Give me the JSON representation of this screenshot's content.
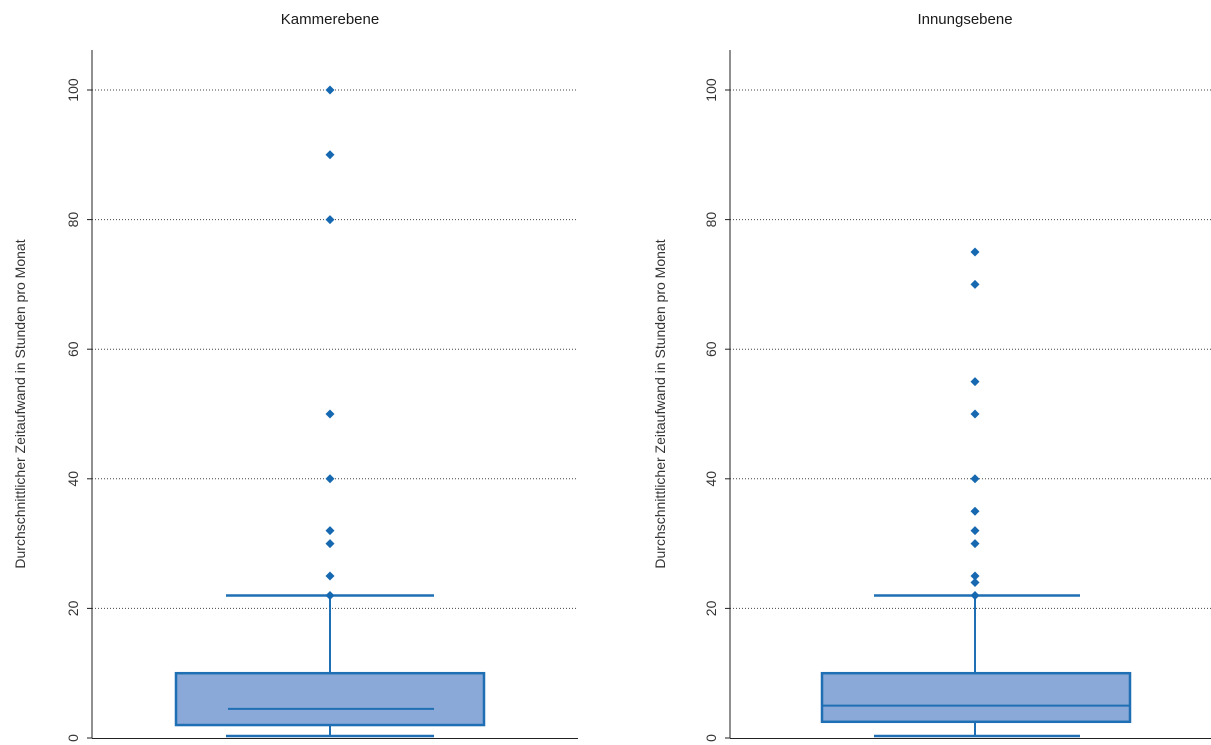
{
  "chart_data": [
    {
      "type": "box",
      "title": "Kammerebene",
      "ylabel": "Durchschnittlicher Zeitaufwand in Stunden pro Monat",
      "ylim": [
        0,
        106
      ],
      "yticks": [
        0,
        20,
        40,
        60,
        80,
        100
      ],
      "grid": true,
      "box": {
        "min": 0.3,
        "q1": 2,
        "median": 4.5,
        "q3": 10,
        "max": 22
      },
      "outliers": [
        22,
        25,
        30,
        32,
        40,
        50,
        80,
        90,
        100
      ],
      "color": "#8aa9d8",
      "edge_color": "#1f6fb4"
    },
    {
      "type": "box",
      "title": "Innungsebene",
      "ylabel": "Durchschnittlicher Zeitaufwand in Stunden pro Monat",
      "ylim": [
        0,
        106
      ],
      "yticks": [
        0,
        20,
        40,
        60,
        80,
        100
      ],
      "grid": true,
      "box": {
        "min": 0.3,
        "q1": 2.5,
        "median": 5,
        "q3": 10,
        "max": 22
      },
      "outliers": [
        22,
        24,
        25,
        30,
        32,
        35,
        40,
        50,
        55,
        70,
        75
      ],
      "color": "#8aa9d8",
      "edge_color": "#1f6fb4"
    }
  ]
}
